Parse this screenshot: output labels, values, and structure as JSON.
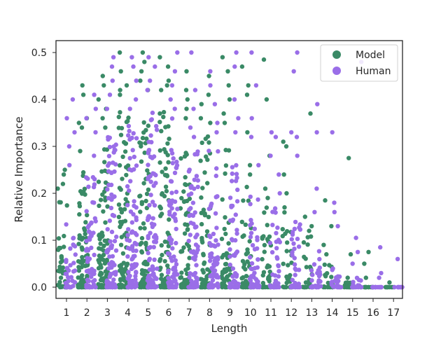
{
  "chart_data": {
    "type": "scatter",
    "subtype": "strip",
    "title": "",
    "xlabel": "Length",
    "ylabel": "Relative Importance",
    "categories": [
      "1",
      "2",
      "3",
      "4",
      "5",
      "6",
      "7",
      "8",
      "9",
      "10",
      "11",
      "12",
      "13",
      "14",
      "15",
      "16",
      "17"
    ],
    "ylim": [
      -0.025,
      0.52
    ],
    "yticks": [
      0.0,
      0.1,
      0.2,
      0.3,
      0.4,
      0.5
    ],
    "ytick_labels": [
      "0.0",
      "0.1",
      "0.2",
      "0.3",
      "0.4",
      "0.5"
    ],
    "grid": false,
    "legend_position": "top-right",
    "series": [
      {
        "name": "Model",
        "color": "#3a8a66",
        "offset": -0.2,
        "density": [
          12,
          24,
          28,
          28,
          26,
          26,
          22,
          20,
          16,
          14,
          10,
          8,
          6,
          5,
          3,
          2,
          1
        ],
        "dense_max": [
          0.2,
          0.26,
          0.32,
          0.38,
          0.36,
          0.38,
          0.33,
          0.33,
          0.3,
          0.22,
          0.18,
          0.16,
          0.11,
          0.06,
          0.02,
          0.0,
          0.0
        ],
        "outliers": [
          [
            0.25,
            0.24,
            0.22,
            0.21
          ],
          [
            0.43,
            0.41,
            0.36,
            0.35,
            0.34,
            0.29
          ],
          [
            0.45,
            0.43,
            0.4,
            0.38,
            0.36,
            0.34
          ],
          [
            0.5,
            0.46,
            0.43,
            0.42,
            0.41
          ],
          [
            0.5,
            0.48,
            0.46,
            0.44,
            0.42
          ],
          [
            0.49,
            0.47,
            0.44,
            0.43,
            0.42
          ],
          [
            0.46,
            0.42,
            0.4,
            0.38,
            0.36
          ],
          [
            0.45,
            0.41,
            0.39,
            0.36,
            0.35
          ],
          [
            0.49,
            0.46,
            0.43,
            0.4,
            0.37,
            0.35
          ],
          [
            0.47,
            0.43,
            0.41,
            0.33,
            0.26,
            0.24
          ],
          [
            0.485,
            0.4,
            0.28,
            0.21,
            0.19
          ],
          [
            0.31,
            0.3,
            0.24,
            0.2,
            0.17
          ],
          [
            0.37,
            0.15,
            0.13,
            0.12
          ],
          [
            0.185,
            0.13,
            0.09,
            0.07
          ],
          [
            0.275,
            0.07,
            0.02,
            0.01
          ],
          [
            0.075,
            0.05,
            0.02
          ],
          [
            0.01
          ]
        ]
      },
      {
        "name": "Human",
        "color": "#9a6ee8",
        "offset": 0.2,
        "density": [
          10,
          20,
          28,
          28,
          28,
          24,
          22,
          20,
          18,
          14,
          12,
          10,
          8,
          6,
          4,
          3,
          1
        ],
        "dense_max": [
          0.16,
          0.24,
          0.32,
          0.36,
          0.38,
          0.36,
          0.3,
          0.3,
          0.26,
          0.2,
          0.17,
          0.14,
          0.09,
          0.05,
          0.02,
          0.0,
          0.0
        ],
        "outliers": [
          [
            0.4,
            0.36,
            0.33,
            0.3,
            0.26
          ],
          [
            0.41,
            0.38,
            0.36,
            0.33,
            0.28
          ],
          [
            0.49,
            0.47,
            0.44,
            0.41,
            0.38
          ],
          [
            0.49,
            0.47,
            0.44,
            0.4,
            0.38
          ],
          [
            0.49,
            0.47,
            0.44,
            0.42
          ],
          [
            0.5,
            0.46,
            0.43,
            0.4,
            0.38
          ],
          [
            0.5,
            0.42,
            0.38,
            0.34,
            0.32
          ],
          [
            0.46,
            0.43,
            0.39,
            0.35,
            0.33
          ],
          [
            0.5,
            0.47,
            0.4,
            0.36,
            0.33
          ],
          [
            0.5,
            0.43,
            0.36,
            0.32,
            0.26
          ],
          [
            0.33,
            0.32,
            0.28,
            0.24,
            0.2
          ],
          [
            0.5,
            0.46,
            0.33,
            0.32,
            0.28
          ],
          [
            0.39,
            0.33,
            0.21,
            0.16
          ],
          [
            0.33,
            0.18,
            0.16,
            0.13
          ],
          [
            0.48,
            0.105,
            0.075,
            0.05
          ],
          [
            0.085,
            0.03,
            0.02
          ],
          [
            0.06
          ]
        ]
      }
    ]
  }
}
